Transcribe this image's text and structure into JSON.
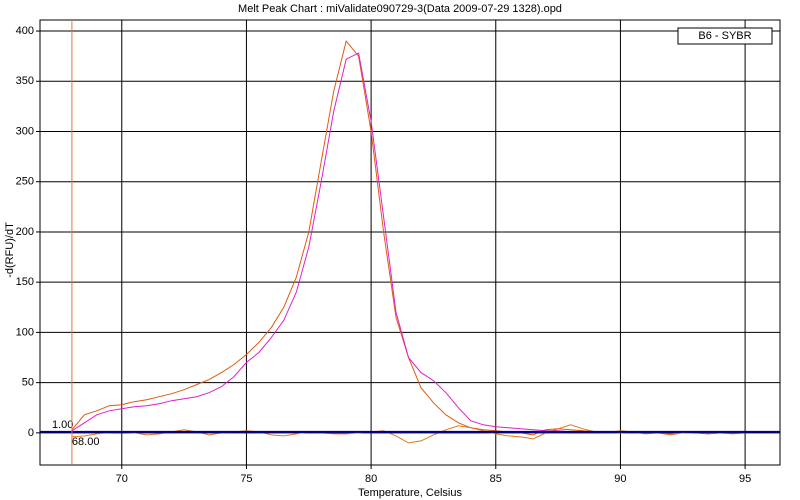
{
  "chart_data": {
    "type": "line",
    "title": "Melt Peak Chart : miValidate090729-3(Data 2009-07-29 1328).opd",
    "x_label": "Temperature, Celsius",
    "y_label": "-d(RFU)/dT",
    "legend_label": "B6 - SYBR",
    "x": [
      68,
      68.5,
      69,
      69.5,
      70,
      70.5,
      71,
      71.5,
      72,
      72.5,
      73,
      73.5,
      74,
      74.5,
      75,
      75.5,
      76,
      76.5,
      77,
      77.5,
      78,
      78.5,
      79,
      79.5,
      80,
      80.5,
      81,
      81.5,
      82,
      82.5,
      83,
      83.5,
      84,
      84.5,
      85,
      85.5,
      86,
      86.5,
      87,
      87.5,
      88,
      88.5,
      89,
      89.5,
      90,
      90.5,
      91,
      91.5,
      92,
      92.5,
      93,
      93.5,
      94,
      94.5,
      95
    ],
    "series": [
      {
        "color": "#e05a10",
        "values": [
          3,
          18,
          22,
          27,
          28,
          31,
          33,
          36,
          39,
          43,
          48,
          53,
          60,
          68,
          78,
          90,
          105,
          125,
          155,
          200,
          270,
          340,
          390,
          375,
          300,
          200,
          115,
          75,
          45,
          30,
          18,
          10,
          5,
          3,
          2,
          1,
          0,
          -2,
          3,
          4,
          3,
          2,
          1,
          1,
          0,
          1,
          0,
          0,
          -1,
          0,
          0,
          -1,
          0,
          0,
          0
        ]
      },
      {
        "color": "#e020c8",
        "values": [
          2,
          10,
          18,
          22,
          24,
          26,
          27,
          29,
          32,
          34,
          36,
          40,
          46,
          56,
          70,
          80,
          95,
          112,
          140,
          185,
          250,
          320,
          372,
          378,
          310,
          215,
          120,
          75,
          60,
          52,
          40,
          25,
          12,
          8,
          6,
          5,
          4,
          3,
          2,
          2,
          1,
          1,
          1,
          1,
          1,
          1,
          1,
          1,
          1,
          1,
          1,
          1,
          1,
          1,
          1
        ]
      },
      {
        "color": "#e07818",
        "values": [
          -4,
          -3,
          -1,
          0,
          1,
          0,
          -2,
          -1,
          1,
          3,
          1,
          -2,
          0,
          1,
          2,
          1,
          -2,
          -3,
          -1,
          1,
          0,
          -1,
          -1,
          0,
          1,
          2,
          -3,
          -10,
          -8,
          -2,
          3,
          7,
          5,
          2,
          -1,
          -3,
          -4,
          -6,
          0,
          4,
          8,
          4,
          1,
          0,
          2,
          1,
          -1,
          0,
          -2,
          0,
          1,
          -1,
          0,
          -1,
          0
        ]
      },
      {
        "color": "#2020a0",
        "values": [
          0,
          0,
          1,
          0,
          0,
          1,
          0,
          0,
          0,
          1,
          0,
          0,
          0,
          1,
          0,
          0,
          0,
          0,
          1,
          0,
          0,
          0,
          0,
          1,
          0,
          0,
          0,
          0,
          1,
          0,
          0,
          0,
          0,
          0,
          1,
          0,
          0,
          0,
          0,
          1,
          0,
          0,
          0,
          0,
          1,
          0,
          0,
          0,
          0,
          1,
          0,
          0,
          0,
          0,
          0
        ]
      }
    ],
    "threshold": {
      "value": 1,
      "label": "1.00",
      "color": "#000080"
    },
    "marker": {
      "value": 68,
      "label": "68.00",
      "color": "#e07840"
    },
    "xlim": [
      66.72,
      96.4
    ],
    "ylim": [
      -32,
      411
    ],
    "xticks": [
      70,
      75,
      80,
      85,
      90,
      95
    ],
    "yticks": [
      0,
      50,
      100,
      150,
      200,
      250,
      300,
      350,
      400
    ],
    "grid": true
  }
}
